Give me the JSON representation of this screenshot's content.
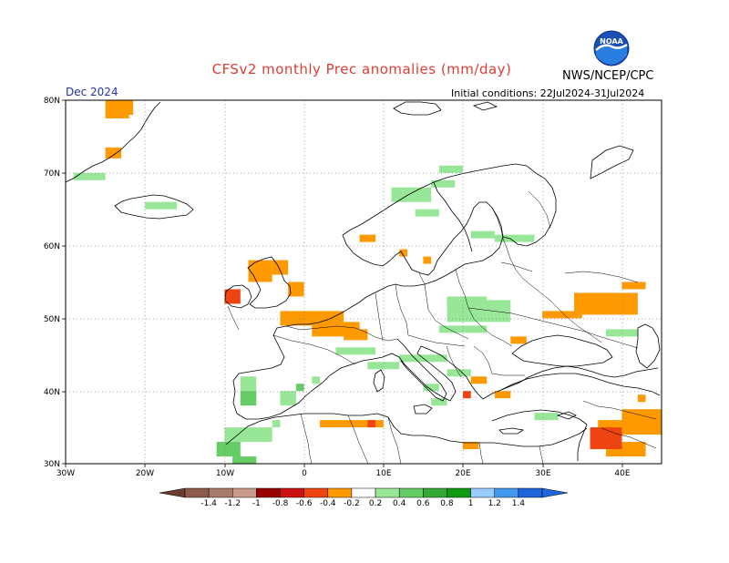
{
  "header": {
    "title": "CFSv2 monthly Prec anomalies (mm/day)",
    "agency": "NWS/NCEP/CPC",
    "valid_month": "Dec 2024",
    "initial_conditions": "Initial conditions: 22Jul2024-31Jul2024",
    "logo_text": "NOAA"
  },
  "axes": {
    "lat_labels": [
      "80N",
      "70N",
      "60N",
      "50N",
      "40N",
      "30N"
    ],
    "lon_labels": [
      "30W",
      "20W",
      "10W",
      "0",
      "10E",
      "20E",
      "30E",
      "40E"
    ],
    "lat_values": [
      80,
      70,
      60,
      50,
      40,
      30
    ],
    "lon_values": [
      -30,
      -20,
      -10,
      0,
      10,
      20,
      30,
      40
    ],
    "lon_range": [
      -30,
      45
    ],
    "lat_range": [
      30,
      80
    ]
  },
  "colorbar": {
    "labels": [
      "-1.4",
      "-1.2",
      "-1",
      "-0.8",
      "-0.6",
      "-0.4",
      "-0.2",
      "0.2",
      "0.4",
      "0.6",
      "0.8",
      "1",
      "1.2",
      "1.4"
    ],
    "colors": [
      "#8b5a4a",
      "#a87a6a",
      "#c89a8a",
      "#990000",
      "#cc1111",
      "#ee4411",
      "#ff9900",
      "#ffffff",
      "#98e698",
      "#66cc66",
      "#33aa33",
      "#119911",
      "#99ccff",
      "#4499ee",
      "#1f66dd"
    ],
    "extend_low_color": "#6b3d2e",
    "extend_high_color": "#1f66dd"
  },
  "anomaly_colors": {
    "dry_light": "#ff9900",
    "dry_strong": "#ee4411",
    "dry_very_strong": "#cc1111",
    "wet_light": "#98e698",
    "wet_medium": "#66cc66",
    "wet_strong": "#33aa33"
  },
  "anomaly_regions": {
    "dry_light": [
      [
        -25,
        77.5,
        3,
        2.5
      ],
      [
        -25,
        72,
        2,
        1.5
      ],
      [
        -23,
        78,
        1.5,
        2
      ],
      [
        -7,
        55,
        3,
        3
      ],
      [
        -4,
        56,
        2,
        2
      ],
      [
        -2,
        53,
        2,
        2
      ],
      [
        -3,
        49,
        8,
        2
      ],
      [
        1,
        47.5,
        6,
        2
      ],
      [
        5,
        47,
        3,
        1.5
      ],
      [
        7,
        60.5,
        2,
        1
      ],
      [
        12,
        58.5,
        1,
        1
      ],
      [
        15,
        57.5,
        1,
        1
      ],
      [
        34,
        50.5,
        8,
        3
      ],
      [
        40,
        54,
        3,
        1
      ],
      [
        30,
        50,
        5,
        1
      ],
      [
        26,
        46.5,
        2,
        1
      ],
      [
        21,
        41,
        2,
        1
      ],
      [
        24,
        39,
        2,
        1
      ],
      [
        2,
        35,
        8,
        1
      ],
      [
        20,
        32,
        2,
        1
      ],
      [
        40,
        35.5,
        5,
        2
      ],
      [
        37,
        34,
        8,
        2
      ],
      [
        38,
        31,
        5,
        2
      ],
      [
        42,
        38.5,
        1,
        1
      ]
    ],
    "dry_strong": [
      [
        -10,
        52,
        2,
        2
      ],
      [
        36,
        32,
        4,
        3
      ],
      [
        20,
        39,
        1,
        1
      ],
      [
        8,
        35,
        1,
        1
      ]
    ],
    "wet_light": [
      [
        -29,
        69,
        4,
        1
      ],
      [
        -20,
        65,
        4,
        1
      ],
      [
        11,
        66,
        5,
        2
      ],
      [
        14,
        64,
        3,
        1
      ],
      [
        16,
        68,
        3,
        1
      ],
      [
        17,
        70,
        3,
        1
      ],
      [
        24,
        60.5,
        5,
        1
      ],
      [
        21,
        61,
        3,
        1
      ],
      [
        18,
        52,
        5,
        1
      ],
      [
        18,
        49.5,
        8,
        3
      ],
      [
        17,
        48,
        6,
        1
      ],
      [
        4,
        45,
        5,
        1
      ],
      [
        8,
        43,
        4,
        1
      ],
      [
        12,
        44,
        6,
        1
      ],
      [
        18,
        42,
        3,
        1
      ],
      [
        15,
        40,
        2,
        1
      ],
      [
        16,
        38,
        2,
        1
      ],
      [
        29,
        36,
        3,
        1
      ],
      [
        34,
        52.5,
        6,
        1
      ],
      [
        38,
        47.5,
        4,
        1
      ],
      [
        -8,
        40,
        2,
        2
      ],
      [
        -3,
        38,
        2,
        2
      ],
      [
        1,
        41,
        1,
        1
      ],
      [
        -4,
        35,
        1,
        1
      ],
      [
        -10,
        33,
        6,
        2
      ]
    ],
    "wet_medium": [
      [
        -8,
        38,
        2,
        2
      ],
      [
        -1,
        40,
        1,
        1
      ],
      [
        -11,
        31,
        3,
        2
      ],
      [
        -9,
        30,
        3,
        1
      ]
    ]
  }
}
